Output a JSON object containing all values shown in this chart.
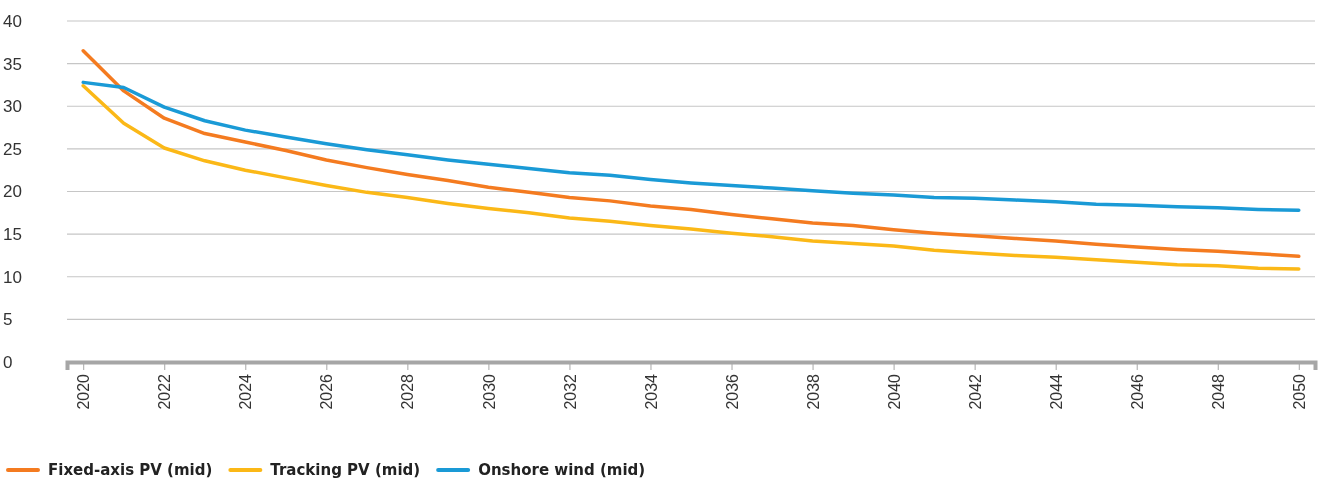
{
  "chart_data": {
    "type": "line",
    "x": [
      2020,
      2021,
      2022,
      2023,
      2024,
      2025,
      2026,
      2027,
      2028,
      2029,
      2030,
      2031,
      2032,
      2033,
      2034,
      2035,
      2036,
      2037,
      2038,
      2039,
      2040,
      2041,
      2042,
      2043,
      2044,
      2045,
      2046,
      2047,
      2048,
      2049,
      2050
    ],
    "series": [
      {
        "name": "Fixed-axis PV (mid)",
        "color": "#f47b20",
        "values": [
          36.5,
          31.8,
          28.6,
          26.8,
          25.8,
          24.8,
          23.7,
          22.8,
          22.0,
          21.3,
          20.5,
          19.9,
          19.3,
          18.9,
          18.3,
          17.9,
          17.3,
          16.8,
          16.3,
          16.0,
          15.5,
          15.1,
          14.8,
          14.5,
          14.2,
          13.8,
          13.5,
          13.2,
          13.0,
          12.7,
          12.4
        ]
      },
      {
        "name": "Tracking PV (mid)",
        "color": "#fbb817",
        "values": [
          32.4,
          28.0,
          25.1,
          23.6,
          22.5,
          21.6,
          20.7,
          19.9,
          19.3,
          18.6,
          18.0,
          17.5,
          16.9,
          16.5,
          16.0,
          15.6,
          15.1,
          14.7,
          14.2,
          13.9,
          13.6,
          13.1,
          12.8,
          12.5,
          12.3,
          12.0,
          11.7,
          11.4,
          11.3,
          11.0,
          10.9
        ]
      },
      {
        "name": "Onshore wind (mid)",
        "color": "#1a9ad6",
        "values": [
          32.8,
          32.2,
          29.9,
          28.3,
          27.2,
          26.4,
          25.6,
          24.9,
          24.3,
          23.7,
          23.2,
          22.7,
          22.2,
          21.9,
          21.4,
          21.0,
          20.7,
          20.4,
          20.1,
          19.8,
          19.6,
          19.3,
          19.2,
          19.0,
          18.8,
          18.5,
          18.4,
          18.2,
          18.1,
          17.9,
          17.8
        ]
      }
    ],
    "xlim": [
      2019.6,
      2050.4
    ],
    "xticks": [
      2020,
      2022,
      2024,
      2026,
      2028,
      2030,
      2032,
      2034,
      2036,
      2038,
      2040,
      2042,
      2044,
      2046,
      2048,
      2050
    ],
    "ylim": [
      0,
      40
    ],
    "yticks": [
      0,
      5,
      10,
      15,
      20,
      25,
      30,
      35,
      40
    ],
    "grid": "y",
    "legend": "bottom left",
    "marker": "none",
    "line_style": "solid"
  }
}
